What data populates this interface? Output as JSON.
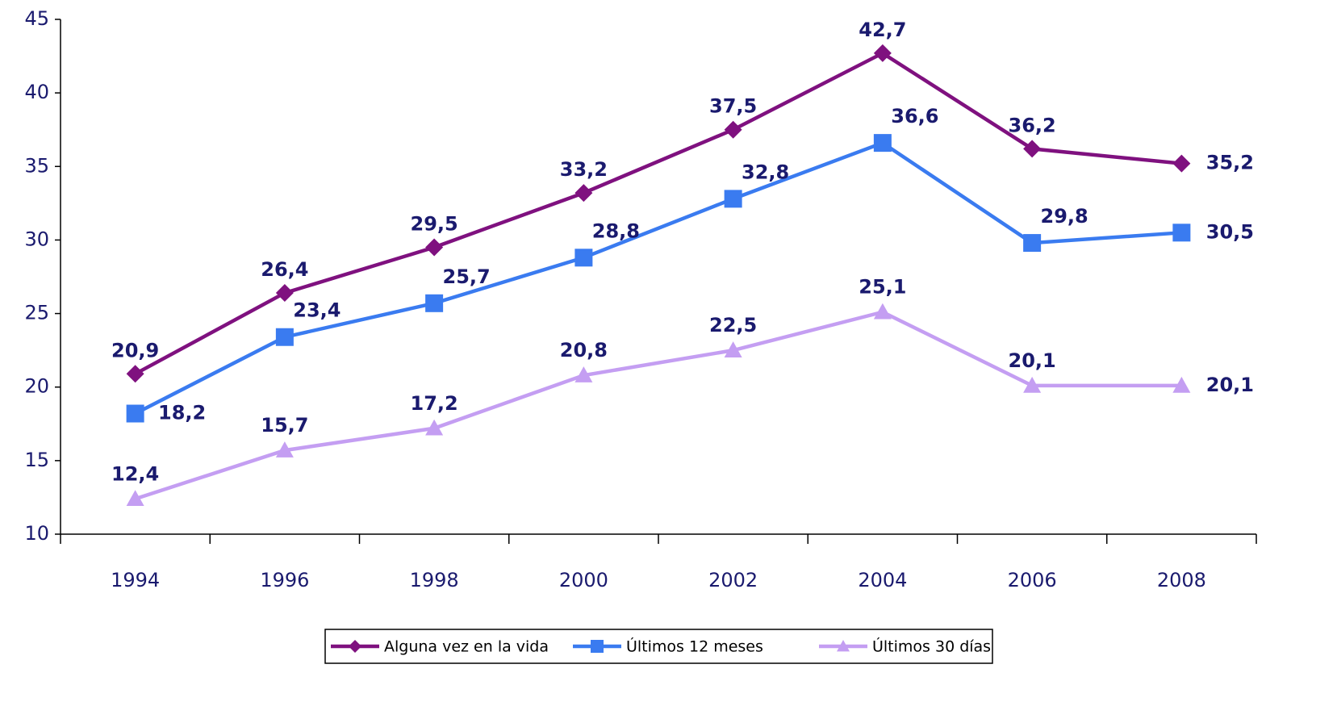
{
  "chart_data": {
    "type": "line",
    "categories": [
      "1994",
      "1996",
      "1998",
      "2000",
      "2002",
      "2004",
      "2006",
      "2008"
    ],
    "series": [
      {
        "name": "Alguna vez en la vida",
        "color": "#7f117f",
        "marker": "diamond",
        "values": [
          20.9,
          26.4,
          29.5,
          33.2,
          37.5,
          42.7,
          36.2,
          35.2
        ],
        "value_labels": [
          "20,9",
          "26,4",
          "29,5",
          "33,2",
          "37,5",
          "42,7",
          "36,2",
          "35,2"
        ]
      },
      {
        "name": "Últimos 12 meses",
        "color": "#3a7bf0",
        "marker": "square",
        "values": [
          18.2,
          23.4,
          25.7,
          28.8,
          32.8,
          36.6,
          29.8,
          30.5
        ],
        "value_labels": [
          "18,2",
          "23,4",
          "25,7",
          "28,8",
          "32,8",
          "36,6",
          "29,8",
          "30,5"
        ]
      },
      {
        "name": "Últimos 30 días",
        "color": "#c49ef2",
        "marker": "triangle",
        "values": [
          12.4,
          15.7,
          17.2,
          20.8,
          22.5,
          25.1,
          20.1,
          20.1
        ],
        "value_labels": [
          "12,4",
          "15,7",
          "17,2",
          "20,8",
          "22,5",
          "25,1",
          "20,1",
          "20,1"
        ]
      }
    ],
    "ylim": [
      10,
      45
    ],
    "yticks": [
      10,
      15,
      20,
      25,
      30,
      35,
      40,
      45
    ],
    "legend": "bottom"
  }
}
